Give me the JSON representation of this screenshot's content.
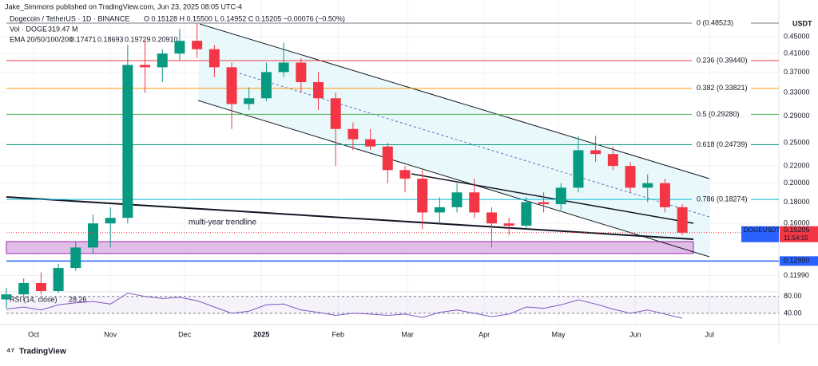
{
  "header": {
    "published": "Jake_Simmons published on TradingView.com, Jun 23, 2025 08:05 UTC-4"
  },
  "chart_data": {
    "type": "candlestick",
    "symbol": "Dogecoin / TetherUS · 1D · BINANCE",
    "ohlc_label": "O 0.15128 H 0.15500 L 0.14952 C 0.15205 −0.00076 (−0.50%)",
    "volume_label": "Vol · DOGE",
    "volume_value": "319.47 M",
    "ema_label": "EMA 20/50/100/200",
    "ema_values": [
      "0.17471",
      "0.18693",
      "0.19729",
      "0.20910"
    ],
    "currency": "USDT",
    "log": true,
    "up_color": "#089981",
    "down_color": "#f23645",
    "xlim": [
      0,
      312
    ],
    "xticks": [
      {
        "value": 11,
        "label": "Oct"
      },
      {
        "value": 42,
        "label": "Nov"
      },
      {
        "value": 72,
        "label": "Dec"
      },
      {
        "value": 103,
        "label": "2025"
      },
      {
        "value": 134,
        "label": "Feb"
      },
      {
        "value": 162,
        "label": "Mar"
      },
      {
        "value": 193,
        "label": "Apr"
      },
      {
        "value": 223,
        "label": "May"
      },
      {
        "value": 254,
        "label": "Jun"
      },
      {
        "value": 284,
        "label": "Jul"
      }
    ],
    "ylim": [
      0.11,
      0.505
    ],
    "yticks": [
      {
        "value": 0.45,
        "label": "0.45000"
      },
      {
        "value": 0.41,
        "label": "0.41000"
      },
      {
        "value": 0.37,
        "label": "0.37000"
      },
      {
        "value": 0.33,
        "label": "0.33000"
      },
      {
        "value": 0.29,
        "label": "0.29000"
      },
      {
        "value": 0.25,
        "label": "0.25000"
      },
      {
        "value": 0.22,
        "label": "0.22000"
      },
      {
        "value": 0.2,
        "label": "0.20000"
      },
      {
        "value": 0.18,
        "label": "0.18000"
      },
      {
        "value": 0.16,
        "label": "0.16000"
      },
      {
        "value": 0.1199,
        "label": "0.11990"
      }
    ],
    "x": [
      0,
      7,
      14,
      21,
      28,
      35,
      42,
      49,
      56,
      63,
      70,
      77,
      84,
      91,
      98,
      105,
      112,
      119,
      126,
      133,
      140,
      147,
      154,
      161,
      168,
      175,
      182,
      189,
      196,
      203,
      210,
      217,
      224,
      231,
      238,
      245,
      252,
      259,
      266,
      273
    ],
    "open": [
      0.105,
      0.108,
      0.115,
      0.11,
      0.125,
      0.14,
      0.16,
      0.165,
      0.385,
      0.38,
      0.41,
      0.44,
      0.42,
      0.38,
      0.31,
      0.32,
      0.37,
      0.39,
      0.35,
      0.32,
      0.27,
      0.255,
      0.245,
      0.215,
      0.205,
      0.17,
      0.175,
      0.19,
      0.17,
      0.16,
      0.158,
      0.18,
      0.178,
      0.195,
      0.24,
      0.235,
      0.22,
      0.195,
      0.2,
      0.175
    ],
    "high": [
      0.112,
      0.118,
      0.122,
      0.128,
      0.145,
      0.168,
      0.175,
      0.43,
      0.44,
      0.42,
      0.47,
      0.485,
      0.43,
      0.39,
      0.34,
      0.39,
      0.435,
      0.4,
      0.37,
      0.33,
      0.28,
      0.27,
      0.25,
      0.22,
      0.215,
      0.185,
      0.2,
      0.205,
      0.175,
      0.165,
      0.185,
      0.19,
      0.2,
      0.26,
      0.26,
      0.245,
      0.225,
      0.21,
      0.205,
      0.178
    ],
    "low": [
      0.1,
      0.104,
      0.108,
      0.109,
      0.123,
      0.135,
      0.14,
      0.16,
      0.33,
      0.35,
      0.395,
      0.4,
      0.36,
      0.27,
      0.3,
      0.315,
      0.36,
      0.33,
      0.3,
      0.22,
      0.24,
      0.24,
      0.2,
      0.19,
      0.155,
      0.16,
      0.17,
      0.165,
      0.14,
      0.15,
      0.155,
      0.17,
      0.172,
      0.19,
      0.225,
      0.215,
      0.19,
      0.18,
      0.17,
      0.15
    ],
    "close": [
      0.108,
      0.115,
      0.11,
      0.125,
      0.14,
      0.16,
      0.165,
      0.385,
      0.38,
      0.41,
      0.44,
      0.42,
      0.38,
      0.31,
      0.32,
      0.37,
      0.39,
      0.35,
      0.32,
      0.27,
      0.255,
      0.245,
      0.215,
      0.205,
      0.17,
      0.175,
      0.19,
      0.17,
      0.16,
      0.158,
      0.18,
      0.178,
      0.195,
      0.24,
      0.235,
      0.22,
      0.195,
      0.2,
      0.175,
      0.152
    ],
    "fib_levels": [
      {
        "label": "0 (0.48523)",
        "value": 0.48523,
        "color": "#787b86"
      },
      {
        "label": "0.236 (0.39440)",
        "value": 0.3944,
        "color": "#f23645"
      },
      {
        "label": "0.382 (0.33821)",
        "value": 0.33821,
        "color": "#ff9800"
      },
      {
        "label": "0.5 (0.29280)",
        "value": 0.2928,
        "color": "#4caf50"
      },
      {
        "label": "0.618 (0.24739)",
        "value": 0.24739,
        "color": "#089981"
      },
      {
        "label": "0.786 (0.18274)",
        "value": 0.18274,
        "color": "#00bcd4"
      }
    ],
    "support": {
      "value": 0.1299,
      "label": "0.12990",
      "color": "#2962ff"
    },
    "last": {
      "symbol": "DOGEUSDT",
      "value": 0.15205,
      "label": "0.15205",
      "countdown": "11:54:15"
    },
    "annotation": "multi-year trendline",
    "rsi": {
      "title": "RSI (14, close)",
      "value_label": "28.26",
      "color": "#7e57c2",
      "ylim": [
        17,
        91
      ],
      "yticks": [
        {
          "value": 80,
          "label": "80.00"
        },
        {
          "value": 40,
          "label": "40.00"
        }
      ],
      "values": [
        50,
        55,
        48,
        60,
        65,
        68,
        62,
        88,
        80,
        75,
        78,
        70,
        55,
        40,
        45,
        60,
        62,
        48,
        42,
        35,
        40,
        38,
        35,
        38,
        30,
        42,
        48,
        40,
        32,
        38,
        55,
        52,
        60,
        72,
        62,
        50,
        40,
        48,
        38,
        28.26
      ]
    }
  },
  "footer": "TradingView"
}
